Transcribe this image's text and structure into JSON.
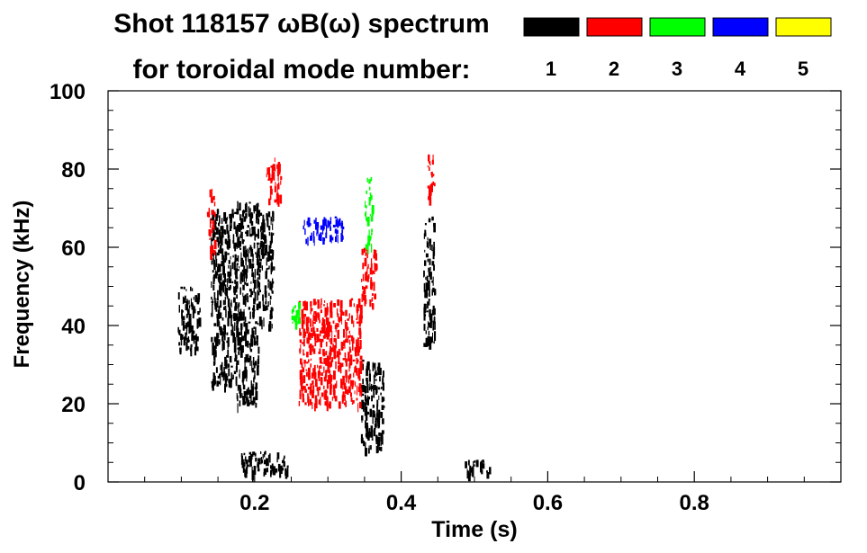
{
  "chart_data": {
    "type": "heatmap",
    "title_line1": "Shot 118157 ωB(ω) spectrum",
    "title_line2": "for toroidal mode number:",
    "xlabel": "Time (s)",
    "ylabel": "Frequency (kHz)",
    "xlim": [
      0.0,
      1.0
    ],
    "ylim": [
      0,
      100
    ],
    "x_ticks": [
      "0.2",
      "0.4",
      "0.6",
      "0.8"
    ],
    "x_tick_values": [
      0.2,
      0.4,
      0.6,
      0.8
    ],
    "y_ticks": [
      "0",
      "20",
      "40",
      "60",
      "80",
      "100"
    ],
    "y_tick_values": [
      0,
      20,
      40,
      60,
      80,
      100
    ],
    "legend_placement": "top-right",
    "legend": [
      {
        "label": "1",
        "color": "#000000"
      },
      {
        "label": "2",
        "color": "#ff0000"
      },
      {
        "label": "3",
        "color": "#00ff00"
      },
      {
        "label": "4",
        "color": "#0000ff"
      },
      {
        "label": "5",
        "color": "#ffff00"
      }
    ],
    "grid": false,
    "regions": [
      {
        "mode": 1,
        "t": [
          0.095,
          0.125
        ],
        "f": [
          34,
          50
        ]
      },
      {
        "mode": 1,
        "t": [
          0.14,
          0.175
        ],
        "f": [
          25,
          70
        ]
      },
      {
        "mode": 1,
        "t": [
          0.175,
          0.205
        ],
        "f": [
          20,
          72
        ]
      },
      {
        "mode": 1,
        "t": [
          0.18,
          0.245
        ],
        "f": [
          2,
          8
        ]
      },
      {
        "mode": 1,
        "t": [
          0.205,
          0.225
        ],
        "f": [
          40,
          70
        ]
      },
      {
        "mode": 1,
        "t": [
          0.345,
          0.375
        ],
        "f": [
          8,
          32
        ]
      },
      {
        "mode": 1,
        "t": [
          0.43,
          0.445
        ],
        "f": [
          35,
          68
        ]
      },
      {
        "mode": 1,
        "t": [
          0.485,
          0.52
        ],
        "f": [
          2,
          6
        ]
      },
      {
        "mode": 2,
        "t": [
          0.26,
          0.345
        ],
        "f": [
          20,
          47
        ]
      },
      {
        "mode": 2,
        "t": [
          0.345,
          0.365
        ],
        "f": [
          45,
          60
        ]
      },
      {
        "mode": 2,
        "t": [
          0.135,
          0.145
        ],
        "f": [
          58,
          75
        ]
      },
      {
        "mode": 2,
        "t": [
          0.215,
          0.235
        ],
        "f": [
          72,
          83
        ]
      },
      {
        "mode": 2,
        "t": [
          0.435,
          0.445
        ],
        "f": [
          72,
          84
        ]
      },
      {
        "mode": 3,
        "t": [
          0.25,
          0.26
        ],
        "f": [
          40,
          46
        ]
      },
      {
        "mode": 3,
        "t": [
          0.35,
          0.36
        ],
        "f": [
          60,
          78
        ]
      },
      {
        "mode": 4,
        "t": [
          0.265,
          0.32
        ],
        "f": [
          62,
          68
        ]
      }
    ]
  }
}
